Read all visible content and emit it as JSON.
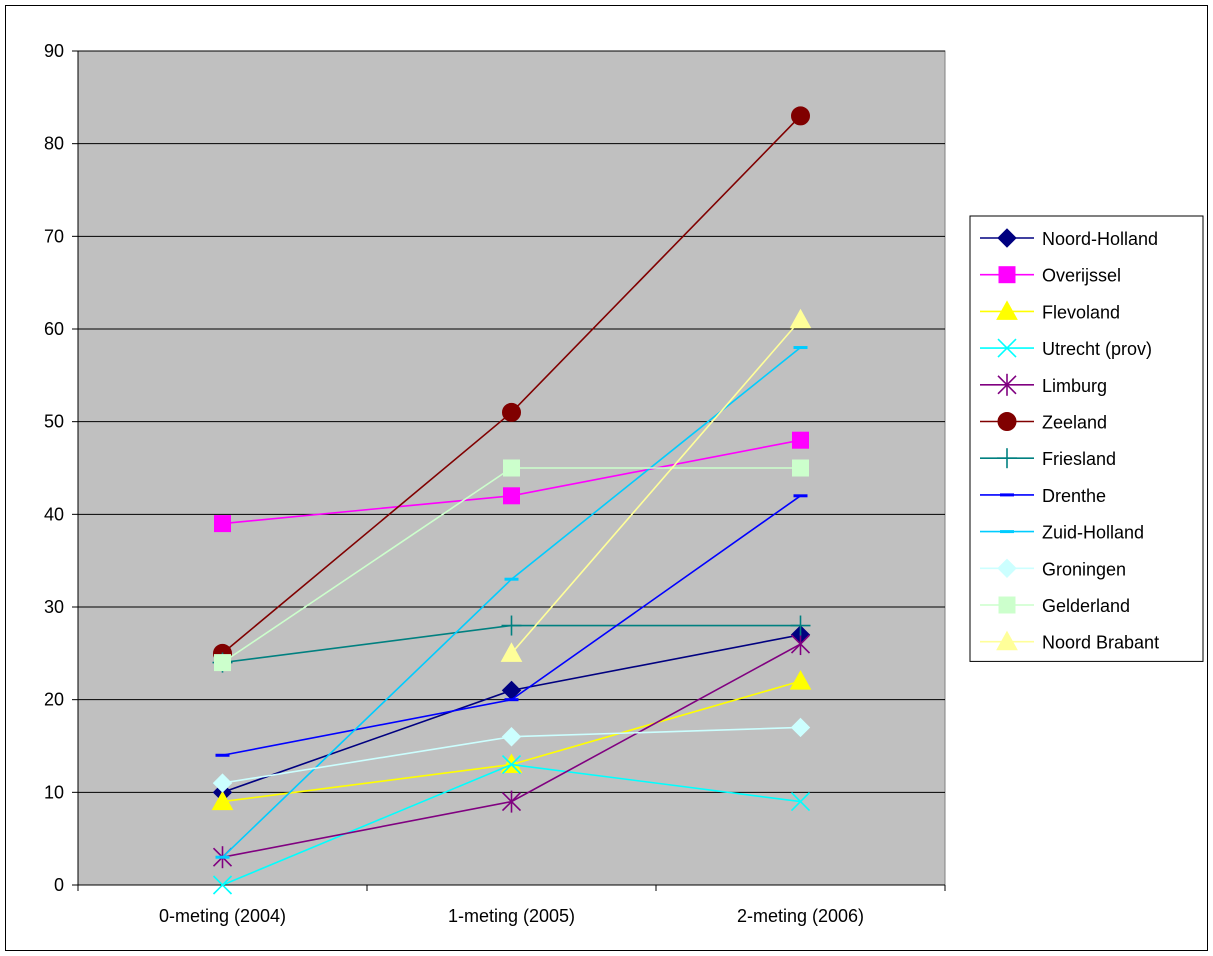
{
  "chart_data": {
    "type": "line",
    "title": "",
    "xlabel": "",
    "ylabel": "",
    "categories": [
      "0-meting (2004)",
      "1-meting (2005)",
      "2-meting (2006)"
    ],
    "ylim": [
      0,
      90
    ],
    "yticks": [
      "0",
      "10",
      "20",
      "30",
      "40",
      "50",
      "60",
      "70",
      "80",
      "90"
    ],
    "grid": true,
    "plot_background": "#c0c0c0",
    "legend_position": "right",
    "series": [
      {
        "name": "Noord-Holland",
        "values": [
          10,
          21,
          27
        ],
        "color": "#000080",
        "marker": "diamond",
        "marker_color": "#000080"
      },
      {
        "name": "Overijssel",
        "values": [
          39,
          42,
          48
        ],
        "color": "#ff00ff",
        "marker": "square",
        "marker_color": "#ff00ff"
      },
      {
        "name": "Flevoland",
        "values": [
          9,
          13,
          22
        ],
        "color": "#ffff00",
        "marker": "triangle",
        "marker_color": "#ffff00"
      },
      {
        "name": "Utrecht (prov)",
        "values": [
          0,
          13,
          9
        ],
        "color": "#00ffff",
        "marker": "x",
        "marker_color": "#00ffff"
      },
      {
        "name": "Limburg",
        "values": [
          3,
          9,
          26
        ],
        "color": "#800080",
        "marker": "star",
        "marker_color": "#800080"
      },
      {
        "name": "Zeeland",
        "values": [
          25,
          51,
          83
        ],
        "color": "#800000",
        "marker": "circle",
        "marker_color": "#800000"
      },
      {
        "name": "Friesland",
        "values": [
          24,
          28,
          28
        ],
        "color": "#008080",
        "marker": "plus",
        "marker_color": "#008080"
      },
      {
        "name": "Drenthe",
        "values": [
          14,
          20,
          42
        ],
        "color": "#0000ff",
        "marker": "dash",
        "marker_color": "#0000ff"
      },
      {
        "name": "Zuid-Holland",
        "values": [
          3,
          33,
          58
        ],
        "color": "#00ccff",
        "marker": "dash",
        "marker_color": "#00ccff"
      },
      {
        "name": "Groningen",
        "values": [
          11,
          16,
          17
        ],
        "color": "#ccffff",
        "marker": "diamond",
        "marker_color": "#ccffff"
      },
      {
        "name": "Gelderland",
        "values": [
          24,
          45,
          45
        ],
        "color": "#ccffcc",
        "marker": "square",
        "marker_color": "#ccffcc"
      },
      {
        "name": "Noord Brabant",
        "values": [
          null,
          25,
          61
        ],
        "color": "#ffff99",
        "marker": "triangle",
        "marker_color": "#ffff99"
      }
    ]
  }
}
